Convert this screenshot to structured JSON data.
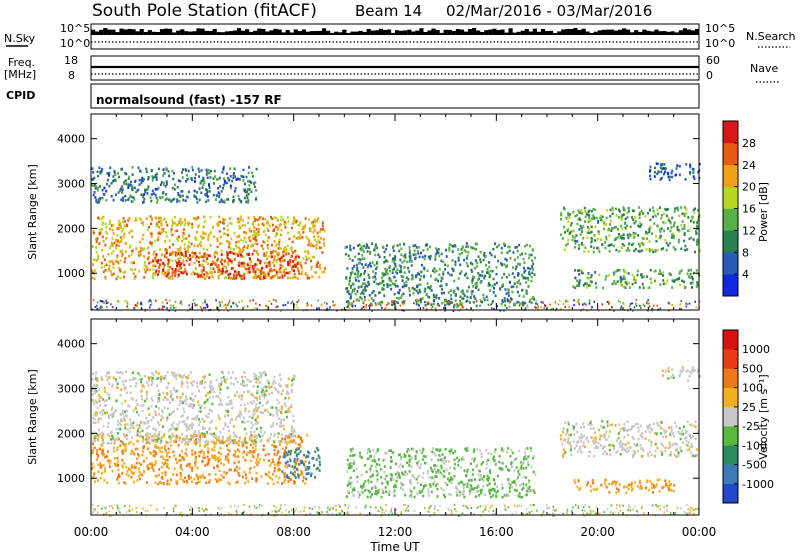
{
  "title": "South Pole Station (fitACF)",
  "beam_label": "Beam 14",
  "date_range": "02/Mar/2016 - 03/Mar/2016",
  "mode_label": "normalsound (fast) -157 RF",
  "left_labels": {
    "nsky": "N.Sky",
    "freq_top": "Freq.",
    "freq_unit": "[MHz]",
    "cpid": "CPID"
  },
  "right_labels": {
    "nsearch": "N.Search",
    "nave": "Nave"
  },
  "ticks": {
    "nsky_top": "10^5",
    "nsky_bottom": "10^0",
    "freq_top": "18",
    "freq_bottom": "8",
    "nave_top": "60",
    "nave_bottom": "0"
  },
  "x_axis": {
    "label": "Time UT",
    "tick_labels": [
      "00:00",
      "04:00",
      "08:00",
      "12:00",
      "16:00",
      "20:00",
      "00:00"
    ]
  },
  "y_axis_label": "Slant Range [km]",
  "y_tick_labels": [
    "1000",
    "2000",
    "3000",
    "4000"
  ],
  "power_colorbar": {
    "label": "Power [dB]",
    "ticks": [
      "4",
      "8",
      "12",
      "16",
      "20",
      "24",
      "28"
    ],
    "colors": [
      "#1028e0",
      "#2a5ab8",
      "#2c8050",
      "#58b048",
      "#b8d820",
      "#f0a010",
      "#e85a10",
      "#d81818"
    ]
  },
  "velocity_colorbar": {
    "label": "Velocity [m s⁻¹]",
    "ticks": [
      "1000",
      "500",
      "100",
      "25",
      "-25",
      "-100",
      "-500",
      "-1000"
    ],
    "colors": [
      "#2048c8",
      "#3c7ab8",
      "#2c8a5c",
      "#58b840",
      "#c8c8c8",
      "#f0b020",
      "#f07818",
      "#e83a10",
      "#d81010"
    ]
  },
  "chart_data": [
    {
      "type": "heatmap",
      "title": "Power",
      "xlabel": "Time UT",
      "ylabel": "Slant Range [km]",
      "xlim_hours": [
        0,
        24
      ],
      "ylim_km": [
        180,
        4550
      ],
      "colorbar_range_db": [
        0,
        30
      ],
      "scatter_regions": [
        {
          "t_start": 0.0,
          "t_end": 9.2,
          "r_start": 900,
          "r_end": 2300,
          "level_db": 20
        },
        {
          "t_start": 2.4,
          "t_end": 8.2,
          "r_start": 900,
          "r_end": 1500,
          "level_db": 26
        },
        {
          "t_start": 0.0,
          "t_end": 6.5,
          "r_start": 2600,
          "r_end": 3400,
          "level_db": 8
        },
        {
          "t_start": 10.0,
          "t_end": 17.5,
          "r_start": 300,
          "r_end": 1700,
          "level_db": 10
        },
        {
          "t_start": 18.5,
          "t_end": 24.0,
          "r_start": 1500,
          "r_end": 2500,
          "level_db": 12
        },
        {
          "t_start": 19.0,
          "t_end": 24.0,
          "r_start": 700,
          "r_end": 1100,
          "level_db": 12
        },
        {
          "t_start": 22.0,
          "t_end": 24.0,
          "r_start": 3100,
          "r_end": 3500,
          "level_db": 5
        }
      ]
    },
    {
      "type": "heatmap",
      "title": "Velocity",
      "xlabel": "Time UT",
      "ylabel": "Slant Range [km]",
      "xlim_hours": [
        0,
        24
      ],
      "ylim_km": [
        180,
        4550
      ],
      "colorbar_range_ms": [
        -1000,
        1000
      ],
      "scatter_regions": [
        {
          "t_start": 0.0,
          "t_end": 8.5,
          "r_start": 900,
          "r_end": 2000,
          "velocity": -300
        },
        {
          "t_start": 0.0,
          "t_end": 8.0,
          "r_start": 1800,
          "r_end": 3400,
          "velocity": 0
        },
        {
          "t_start": 7.5,
          "t_end": 9.0,
          "r_start": 1000,
          "r_end": 1700,
          "velocity": 600
        },
        {
          "t_start": 10.0,
          "t_end": 17.5,
          "r_start": 600,
          "r_end": 1700,
          "velocity": 150
        },
        {
          "t_start": 18.5,
          "t_end": 24.0,
          "r_start": 1500,
          "r_end": 2300,
          "velocity": 0
        },
        {
          "t_start": 19.0,
          "t_end": 23.0,
          "r_start": 700,
          "r_end": 1000,
          "velocity": -300
        },
        {
          "t_start": 22.5,
          "t_end": 24.0,
          "r_start": 3200,
          "r_end": 3500,
          "velocity": 0
        }
      ]
    }
  ]
}
